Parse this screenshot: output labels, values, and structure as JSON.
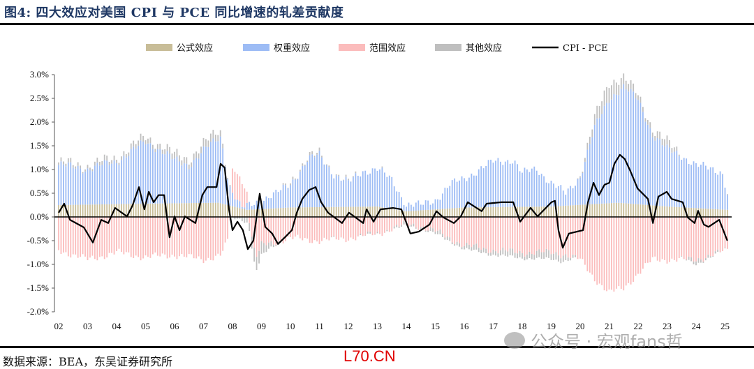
{
  "title": "图4:  四大效应对美国 CPI 与 PCE 同比增速的轧差贡献度",
  "source": "数据来源：BEA，东吴证券研究所",
  "stamp": "L70.CN",
  "watermark": "公众号 · 宏观fans哲",
  "chart_data": {
    "type": "bar",
    "subtype": "stacked bar + line",
    "title": "四大效应对美国 CPI 与 PCE 同比增速的轧差贡献度",
    "xlabel": "",
    "ylabel": "",
    "ylim": [
      -2.0,
      3.0
    ],
    "xlim": [
      2002,
      2025.2
    ],
    "yticks": [
      "-2.0%",
      "-1.5%",
      "-1.0%",
      "-0.5%",
      "0.0%",
      "0.5%",
      "1.0%",
      "1.5%",
      "2.0%",
      "2.5%",
      "3.0%"
    ],
    "ytick_values": [
      -2.0,
      -1.5,
      -1.0,
      -0.5,
      0.0,
      0.5,
      1.0,
      1.5,
      2.0,
      2.5,
      3.0
    ],
    "xticks": [
      "02",
      "03",
      "04",
      "05",
      "06",
      "07",
      "08",
      "09",
      "10",
      "11",
      "12",
      "13",
      "14",
      "15",
      "16",
      "17",
      "18",
      "19",
      "20",
      "21",
      "22",
      "23",
      "24",
      "25"
    ],
    "legend_position": "top-center",
    "grid": false,
    "frequency": "monthly, values interpolated between anchor points [year, %]",
    "series": [
      {
        "name": "公式效应",
        "kind": "bar",
        "color": "#c8bd98",
        "anchors": [
          [
            2002,
            0.25
          ],
          [
            2005,
            0.28
          ],
          [
            2007.5,
            0.3
          ],
          [
            2008.5,
            0.15
          ],
          [
            2010,
            0.2
          ],
          [
            2013,
            0.22
          ],
          [
            2014,
            0.12
          ],
          [
            2016,
            0.2
          ],
          [
            2019,
            0.22
          ],
          [
            2021.3,
            0.3
          ],
          [
            2023,
            0.22
          ],
          [
            2025.1,
            0.15
          ]
        ]
      },
      {
        "name": "权重效应",
        "kind": "bar",
        "color": "#9dbcf5",
        "anchors": [
          [
            2002,
            0.85
          ],
          [
            2003,
            0.75
          ],
          [
            2004,
            0.9
          ],
          [
            2005,
            1.3
          ],
          [
            2005.6,
            1.1
          ],
          [
            2006,
            0.9
          ],
          [
            2006.5,
            0.8
          ],
          [
            2007,
            1.1
          ],
          [
            2007.6,
            1.4
          ],
          [
            2007.9,
            0.4
          ],
          [
            2008.3,
            0.0
          ],
          [
            2008.6,
            0.1
          ],
          [
            2009,
            0.2
          ],
          [
            2009.5,
            0.3
          ],
          [
            2010,
            0.5
          ],
          [
            2010.6,
            1.0
          ],
          [
            2011,
            1.1
          ],
          [
            2011.5,
            0.7
          ],
          [
            2012,
            0.5
          ],
          [
            2012.5,
            0.75
          ],
          [
            2013,
            0.8
          ],
          [
            2013.5,
            0.6
          ],
          [
            2014,
            0.15
          ],
          [
            2014.5,
            0.1
          ],
          [
            2015,
            0.2
          ],
          [
            2015.5,
            0.5
          ],
          [
            2016,
            0.6
          ],
          [
            2016.5,
            0.8
          ],
          [
            2017,
            0.95
          ],
          [
            2017.7,
            1.0
          ],
          [
            2018,
            0.7
          ],
          [
            2018.5,
            0.8
          ],
          [
            2019,
            0.5
          ],
          [
            2019.5,
            0.25
          ],
          [
            2020,
            0.6
          ],
          [
            2020.5,
            1.6
          ],
          [
            2021,
            2.2
          ],
          [
            2021.5,
            2.45
          ],
          [
            2022,
            2.2
          ],
          [
            2022.5,
            1.5
          ],
          [
            2023,
            1.2
          ],
          [
            2023.5,
            1.1
          ],
          [
            2024,
            0.9
          ],
          [
            2024.5,
            0.85
          ],
          [
            2024.9,
            0.8
          ],
          [
            2025.08,
            0.35
          ]
        ]
      },
      {
        "name": "范围效应",
        "kind": "bar",
        "color": "#fbbcbc",
        "anchors": [
          [
            2002,
            -0.7
          ],
          [
            2003,
            -0.9
          ],
          [
            2004,
            -0.75
          ],
          [
            2005,
            -0.85
          ],
          [
            2006,
            -0.8
          ],
          [
            2007,
            -0.9
          ],
          [
            2007.6,
            -0.8
          ],
          [
            2007.85,
            -0.5
          ],
          [
            2008.0,
            0.5
          ],
          [
            2008.25,
            0.6
          ],
          [
            2008.5,
            0.3
          ],
          [
            2008.7,
            -0.6
          ],
          [
            2008.85,
            -0.85
          ],
          [
            2009,
            -0.6
          ],
          [
            2010,
            -0.45
          ],
          [
            2011,
            -0.5
          ],
          [
            2012,
            -0.45
          ],
          [
            2013,
            -0.35
          ],
          [
            2014,
            -0.15
          ],
          [
            2014.5,
            -0.2
          ],
          [
            2015,
            -0.3
          ],
          [
            2016,
            -0.6
          ],
          [
            2017,
            -0.7
          ],
          [
            2018,
            -0.75
          ],
          [
            2019,
            -0.75
          ],
          [
            2019.5,
            -0.8
          ],
          [
            2020,
            -0.9
          ],
          [
            2020.5,
            -1.3
          ],
          [
            2021,
            -1.6
          ],
          [
            2021.5,
            -1.5
          ],
          [
            2022,
            -1.2
          ],
          [
            2022.5,
            -0.9
          ],
          [
            2023,
            -0.9
          ],
          [
            2024,
            -0.9
          ],
          [
            2025.08,
            -0.7
          ]
        ]
      },
      {
        "name": "其他效应",
        "kind": "bar",
        "color": "#bfbfbf",
        "anchors": [
          [
            2002,
            0.05
          ],
          [
            2007.5,
            0.15
          ],
          [
            2008.5,
            -0.15
          ],
          [
            2008.8,
            -0.3
          ],
          [
            2009.3,
            -0.1
          ],
          [
            2010,
            0.05
          ],
          [
            2019.4,
            -0.15
          ],
          [
            2020.5,
            0.2
          ],
          [
            2021,
            0.35
          ],
          [
            2021.5,
            0.2
          ],
          [
            2022,
            0.1
          ],
          [
            2023,
            0.15
          ],
          [
            2024,
            -0.1
          ],
          [
            2025.1,
            0.03
          ]
        ]
      },
      {
        "name": "CPI - PCE",
        "kind": "line",
        "color": "#000000",
        "points": [
          [
            2002.0,
            0.09
          ],
          [
            2002.19,
            0.28
          ],
          [
            2002.39,
            -0.06
          ],
          [
            2002.87,
            -0.22
          ],
          [
            2003.18,
            -0.54
          ],
          [
            2003.47,
            -0.06
          ],
          [
            2003.71,
            -0.13
          ],
          [
            2003.95,
            0.19
          ],
          [
            2004.36,
            0.01
          ],
          [
            2004.55,
            0.24
          ],
          [
            2004.77,
            0.63
          ],
          [
            2004.96,
            0.16
          ],
          [
            2005.11,
            0.53
          ],
          [
            2005.28,
            0.31
          ],
          [
            2005.45,
            0.46
          ],
          [
            2005.64,
            0.46
          ],
          [
            2005.83,
            -0.43
          ],
          [
            2006.0,
            0.01
          ],
          [
            2006.17,
            -0.28
          ],
          [
            2006.36,
            0.01
          ],
          [
            2006.72,
            -0.13
          ],
          [
            2006.96,
            0.46
          ],
          [
            2007.13,
            0.63
          ],
          [
            2007.45,
            0.63
          ],
          [
            2007.59,
            1.12
          ],
          [
            2007.73,
            1.04
          ],
          [
            2007.88,
            0.16
          ],
          [
            2008.0,
            -0.28
          ],
          [
            2008.17,
            -0.1
          ],
          [
            2008.36,
            -0.28
          ],
          [
            2008.53,
            -0.68
          ],
          [
            2008.72,
            -0.5
          ],
          [
            2008.94,
            0.49
          ],
          [
            2009.13,
            -0.21
          ],
          [
            2009.37,
            -0.35
          ],
          [
            2009.57,
            -0.57
          ],
          [
            2009.81,
            -0.43
          ],
          [
            2010.05,
            -0.28
          ],
          [
            2010.22,
            0.09
          ],
          [
            2010.41,
            0.38
          ],
          [
            2010.65,
            0.57
          ],
          [
            2010.87,
            0.63
          ],
          [
            2011.06,
            0.31
          ],
          [
            2011.3,
            0.09
          ],
          [
            2011.78,
            -0.13
          ],
          [
            2012.02,
            0.09
          ],
          [
            2012.51,
            -0.13
          ],
          [
            2012.63,
            0.16
          ],
          [
            2012.87,
            -0.1
          ],
          [
            2013.11,
            0.16
          ],
          [
            2013.54,
            0.19
          ],
          [
            2013.83,
            0.16
          ],
          [
            2014.14,
            -0.35
          ],
          [
            2014.43,
            -0.31
          ],
          [
            2014.8,
            -0.16
          ],
          [
            2015.04,
            0.12
          ],
          [
            2015.28,
            -0.01
          ],
          [
            2015.64,
            -0.13
          ],
          [
            2015.88,
            0.01
          ],
          [
            2016.12,
            0.31
          ],
          [
            2016.6,
            0.12
          ],
          [
            2016.77,
            0.28
          ],
          [
            2017.28,
            0.31
          ],
          [
            2017.69,
            0.31
          ],
          [
            2017.93,
            -0.1
          ],
          [
            2018.29,
            0.19
          ],
          [
            2018.53,
            0.01
          ],
          [
            2019.01,
            0.31
          ],
          [
            2019.13,
            0.34
          ],
          [
            2019.25,
            -0.28
          ],
          [
            2019.4,
            -0.65
          ],
          [
            2019.61,
            -0.35
          ],
          [
            2020.1,
            -0.28
          ],
          [
            2020.27,
            0.31
          ],
          [
            2020.46,
            0.72
          ],
          [
            2020.65,
            0.46
          ],
          [
            2020.84,
            0.68
          ],
          [
            2021.01,
            0.72
          ],
          [
            2021.18,
            1.12
          ],
          [
            2021.37,
            1.31
          ],
          [
            2021.54,
            1.22
          ],
          [
            2021.73,
            0.97
          ],
          [
            2021.98,
            0.6
          ],
          [
            2022.34,
            0.38
          ],
          [
            2022.51,
            -0.13
          ],
          [
            2022.7,
            0.43
          ],
          [
            2022.99,
            0.53
          ],
          [
            2023.16,
            0.38
          ],
          [
            2023.54,
            0.31
          ],
          [
            2023.71,
            -0.01
          ],
          [
            2023.95,
            -0.13
          ],
          [
            2024.07,
            0.13
          ],
          [
            2024.27,
            -0.16
          ],
          [
            2024.43,
            -0.21
          ],
          [
            2024.8,
            -0.06
          ],
          [
            2025.08,
            -0.5
          ]
        ]
      }
    ]
  }
}
